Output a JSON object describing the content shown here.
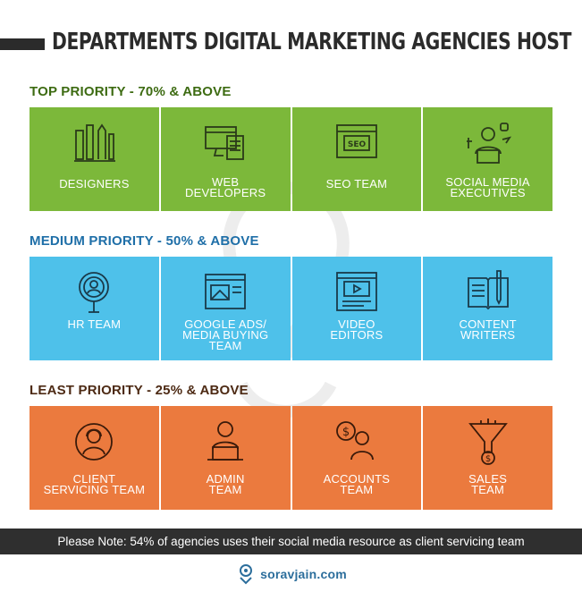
{
  "title": "DEPARTMENTS DIGITAL MARKETING AGENCIES HOST",
  "sections": [
    {
      "label": "TOP PRIORITY - 70% & ABOVE",
      "tiles": [
        {
          "label": "DESIGNERS",
          "icon": "design-tools-icon"
        },
        {
          "label": "WEB\nDEVELOPERS",
          "icon": "web-developer-icon"
        },
        {
          "label": "SEO TEAM",
          "icon": "seo-browser-icon"
        },
        {
          "label": "SOCIAL MEDIA\nEXECUTIVES",
          "icon": "social-media-executive-icon"
        }
      ]
    },
    {
      "label": "MEDIUM PRIORITY - 50% & ABOVE",
      "tiles": [
        {
          "label": "HR TEAM",
          "icon": "hr-magnifier-icon"
        },
        {
          "label": "GOOGLE ADS/\nMEDIA BUYING\nTEAM",
          "icon": "ads-window-icon"
        },
        {
          "label": "VIDEO\nEDITORS",
          "icon": "video-editor-icon"
        },
        {
          "label": "CONTENT\nWRITERS",
          "icon": "content-writer-icon"
        }
      ]
    },
    {
      "label": "LEAST PRIORITY - 25% & ABOVE",
      "tiles": [
        {
          "label": "CLIENT\nSERVICING TEAM",
          "icon": "client-service-icon"
        },
        {
          "label": "ADMIN\nTEAM",
          "icon": "admin-laptop-icon"
        },
        {
          "label": "ACCOUNTS\nTEAM",
          "icon": "accounts-dollar-icon"
        },
        {
          "label": "SALES\nTEAM",
          "icon": "sales-funnel-icon"
        }
      ]
    }
  ],
  "note": "Please Note: 54% of agencies uses their social media resource as client servicing team",
  "brand": "sorav",
  "brand_bold": "jain",
  "brand_suffix": ".com",
  "colors": {
    "top": "#7cb83a",
    "medium": "#4ec1ea",
    "least": "#eb7a3e",
    "dark": "#2b2b2b"
  }
}
